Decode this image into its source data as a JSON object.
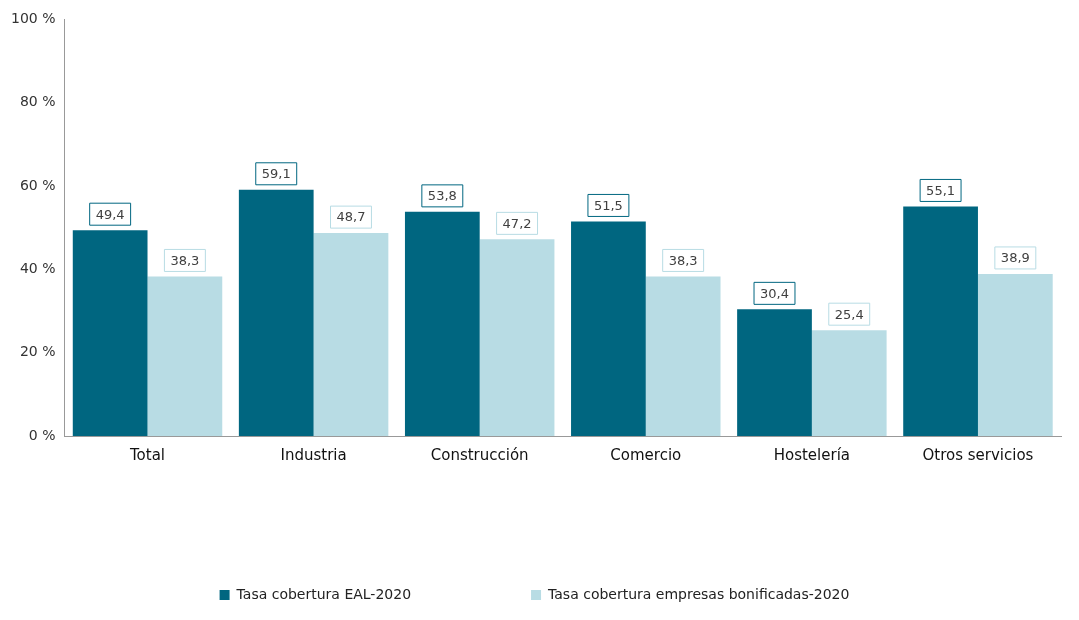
{
  "chart_data": {
    "type": "bar",
    "categories": [
      "Total",
      "Industria",
      "Construcción",
      "Comercio",
      "Hostelería",
      "Otros servicios"
    ],
    "series": [
      {
        "name": "Tasa cobertura EAL-2020",
        "color": "#006680",
        "values": [
          49.4,
          59.1,
          53.8,
          51.5,
          30.4,
          55.1
        ],
        "value_labels": [
          "49,4",
          "59,1",
          "53,8",
          "51,5",
          "30,4",
          "55,1"
        ]
      },
      {
        "name": "Tasa cobertura empresas bonificadas-2020",
        "color": "#b8dce4",
        "values": [
          38.3,
          48.7,
          47.2,
          38.3,
          25.4,
          38.9
        ],
        "value_labels": [
          "38,3",
          "48,7",
          "47,2",
          "38,3",
          "25,4",
          "38,9"
        ]
      }
    ],
    "ylim": [
      0,
      100
    ],
    "yticks": [
      {
        "value": 0,
        "label": "0 %"
      },
      {
        "value": 20,
        "label": "20 %"
      },
      {
        "value": 40,
        "label": "40 %"
      },
      {
        "value": 60,
        "label": "60 %"
      },
      {
        "value": 80,
        "label": "80 %"
      },
      {
        "value": 100,
        "label": "100 %"
      }
    ],
    "grid": false,
    "legend": "bottom"
  }
}
